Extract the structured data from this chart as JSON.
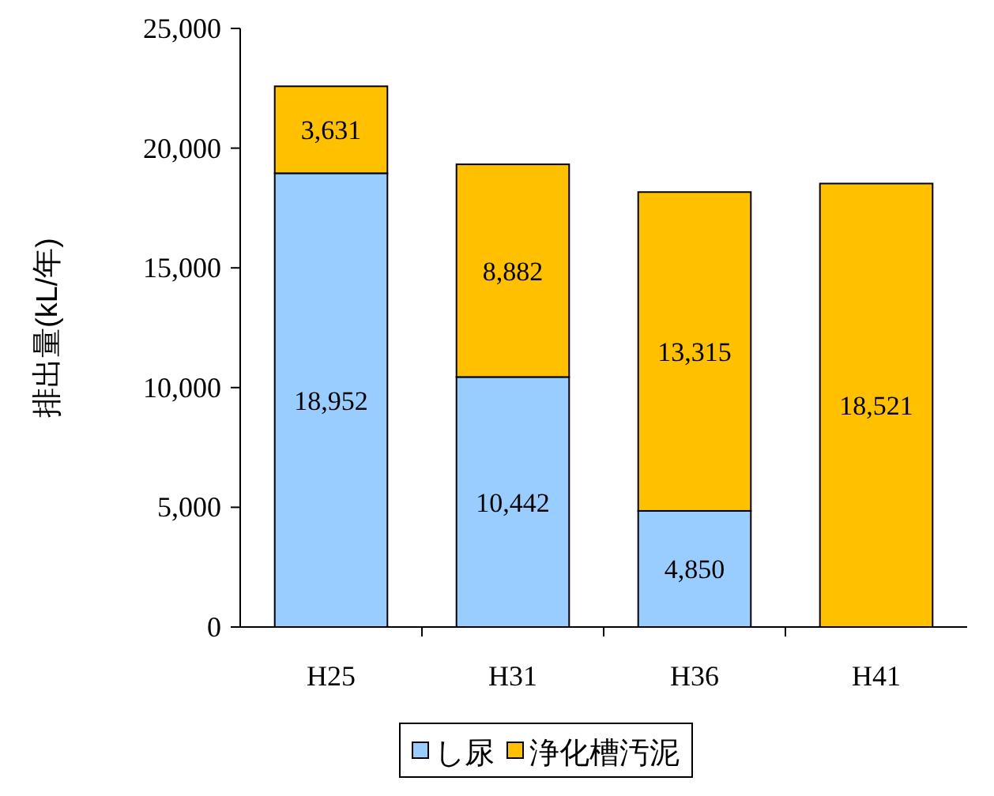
{
  "chart_data": {
    "type": "bar",
    "stacked": true,
    "ylabel": "排出量(kL/年)",
    "categories": [
      "H25",
      "H31",
      "H36",
      "H41"
    ],
    "ylim": [
      0,
      25000
    ],
    "yticks": [
      {
        "value": 0,
        "label": "0"
      },
      {
        "value": 5000,
        "label": "5,000"
      },
      {
        "value": 10000,
        "label": "10,000"
      },
      {
        "value": 15000,
        "label": "15,000"
      },
      {
        "value": 20000,
        "label": "20,000"
      },
      {
        "value": 25000,
        "label": "25,000"
      }
    ],
    "grid": false,
    "legend": "bottom",
    "series": [
      {
        "name": "し尿",
        "color": "#99ccff",
        "values": [
          18952,
          10442,
          4850,
          null
        ],
        "value_labels": [
          "18,952",
          "10,442",
          "4,850",
          null
        ]
      },
      {
        "name": "浄化槽汚泥",
        "color": "#ffc000",
        "values": [
          3631,
          8882,
          13315,
          18521
        ],
        "value_labels": [
          "3,631",
          "8,882",
          "13,315",
          "18,521"
        ]
      }
    ]
  }
}
